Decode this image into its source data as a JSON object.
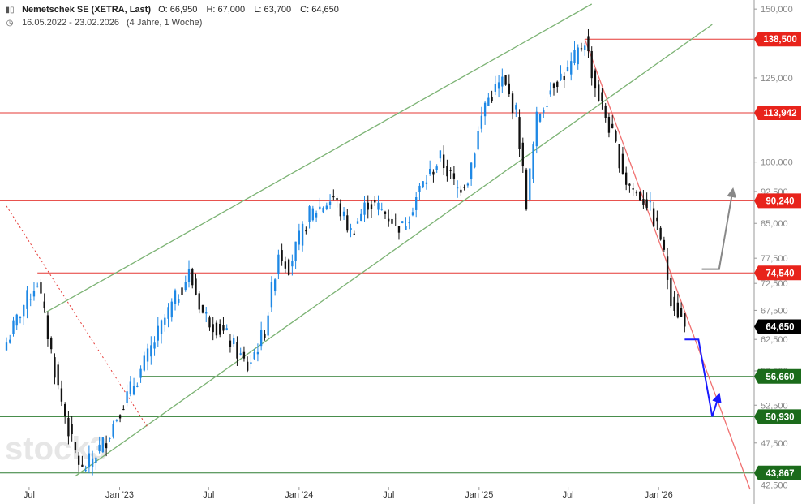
{
  "header": {
    "instrument": "Nemetschek SE (XETRA, Last)",
    "open": "O: 66,950",
    "high": "H: 67,000",
    "low": "L: 63,700",
    "close": "C: 64,650",
    "range": "16.05.2022 - 23.02.2026",
    "period": "(4 Jahre, 1 Woche)",
    "watermark": "stock3",
    "icons": [
      "candles-icon",
      "clock-icon"
    ]
  },
  "chart_data": {
    "type": "candlestick",
    "timeframe": "weekly",
    "x_range": [
      "2022-05-16",
      "2026-02-23"
    ],
    "ylim": [
      42000,
      152000
    ],
    "y_ticks": [
      42500,
      47500,
      52500,
      57500,
      62500,
      67500,
      72500,
      77500,
      85000,
      92500,
      100000,
      125000,
      150000
    ],
    "y_tick_labels": [
      "42,500",
      "47,500",
      "52,500",
      "57,500",
      "62,500",
      "67,500",
      "72,500",
      "77,500",
      "85,000",
      "92,500",
      "100,000",
      "125,000",
      "150,000"
    ],
    "x_ticks": [
      "2022-07-01",
      "2023-01-01",
      "2023-07-01",
      "2024-01-01",
      "2024-07-01",
      "2025-01-01",
      "2025-07-01",
      "2026-01-01"
    ],
    "x_tick_labels": [
      "Jul",
      "Jan '23",
      "Jul",
      "Jan '24",
      "Jul",
      "Jan '25",
      "Jul",
      "Jan '26"
    ],
    "colors": {
      "up": "#1e88e5",
      "down": "#111111",
      "resistance": "#e53935",
      "support": "#2e7d32",
      "channel": "#7cb374",
      "trendline": "#f07070",
      "projection_down": "#1a1aff",
      "projection_up": "#888888"
    },
    "price_levels": [
      {
        "value": 138500,
        "label": "138,500",
        "kind": "resistance"
      },
      {
        "value": 113942,
        "label": "113,942",
        "kind": "resistance"
      },
      {
        "value": 90240,
        "label": "90,240",
        "kind": "resistance"
      },
      {
        "value": 74540,
        "label": "74,540",
        "kind": "resistance"
      },
      {
        "value": 64650,
        "label": "64,650",
        "kind": "last"
      },
      {
        "value": 56660,
        "label": "56,660",
        "kind": "support"
      },
      {
        "value": 50930,
        "label": "50,930",
        "kind": "support"
      },
      {
        "value": 43867,
        "label": "43,867",
        "kind": "support"
      }
    ],
    "anchors": [
      {
        "date": "2022-05-16",
        "value": 62000
      },
      {
        "date": "2022-06-20",
        "value": 68500
      },
      {
        "date": "2022-07-18",
        "value": 73000
      },
      {
        "date": "2022-08-29",
        "value": 55000
      },
      {
        "date": "2022-09-26",
        "value": 47500
      },
      {
        "date": "2022-10-17",
        "value": 44000
      },
      {
        "date": "2022-12-05",
        "value": 48000
      },
      {
        "date": "2023-01-02",
        "value": 52000
      },
      {
        "date": "2023-02-13",
        "value": 57500
      },
      {
        "date": "2023-04-03",
        "value": 66000
      },
      {
        "date": "2023-05-22",
        "value": 74500
      },
      {
        "date": "2023-06-19",
        "value": 67000
      },
      {
        "date": "2023-08-07",
        "value": 63000
      },
      {
        "date": "2023-09-18",
        "value": 58000
      },
      {
        "date": "2023-10-23",
        "value": 64000
      },
      {
        "date": "2023-11-20",
        "value": 79000
      },
      {
        "date": "2023-12-11",
        "value": 76000
      },
      {
        "date": "2024-01-22",
        "value": 87000
      },
      {
        "date": "2024-03-11",
        "value": 91000
      },
      {
        "date": "2024-04-15",
        "value": 83000
      },
      {
        "date": "2024-05-20",
        "value": 90000
      },
      {
        "date": "2024-06-17",
        "value": 88000
      },
      {
        "date": "2024-07-29",
        "value": 84000
      },
      {
        "date": "2024-09-02",
        "value": 93000
      },
      {
        "date": "2024-10-14",
        "value": 101000
      },
      {
        "date": "2024-11-18",
        "value": 93000
      },
      {
        "date": "2024-12-09",
        "value": 96000
      },
      {
        "date": "2025-01-13",
        "value": 117000
      },
      {
        "date": "2025-02-17",
        "value": 124000
      },
      {
        "date": "2025-03-17",
        "value": 114000
      },
      {
        "date": "2025-04-07",
        "value": 90000
      },
      {
        "date": "2025-04-28",
        "value": 112000
      },
      {
        "date": "2025-06-02",
        "value": 124000
      },
      {
        "date": "2025-06-30",
        "value": 127000
      },
      {
        "date": "2025-08-04",
        "value": 138500
      },
      {
        "date": "2025-08-25",
        "value": 122000
      },
      {
        "date": "2025-09-29",
        "value": 107000
      },
      {
        "date": "2025-10-27",
        "value": 95000
      },
      {
        "date": "2025-11-17",
        "value": 92000
      },
      {
        "date": "2025-12-08",
        "value": 90000
      },
      {
        "date": "2026-01-05",
        "value": 82000
      },
      {
        "date": "2026-01-26",
        "value": 70000
      },
      {
        "date": "2026-02-23",
        "value": 64650
      }
    ],
    "channel_lines": [
      {
        "points": [
          [
            "2022-10-03",
            43500
          ],
          [
            "2026-04-20",
            144000
          ]
        ]
      },
      {
        "points": [
          [
            "2022-08-01",
            67000
          ],
          [
            "2025-08-18",
            152000
          ]
        ]
      }
    ],
    "trendlines": [
      {
        "style": "solid",
        "points": [
          [
            "2025-08-04",
            138500
          ],
          [
            "2026-07-06",
            42000
          ]
        ]
      },
      {
        "style": "dotted",
        "points": [
          [
            "2022-05-16",
            89000
          ],
          [
            "2023-02-27",
            49500
          ]
        ]
      }
    ],
    "projection_down": [
      [
        "2026-02-23",
        62500
      ],
      [
        "2026-03-23",
        62500
      ],
      [
        "2026-04-20",
        50930
      ],
      [
        "2026-05-04",
        54000
      ]
    ],
    "projection_up": [
      [
        "2026-03-30",
        75300
      ],
      [
        "2026-05-04",
        75300
      ],
      [
        "2026-06-01",
        93000
      ]
    ]
  }
}
